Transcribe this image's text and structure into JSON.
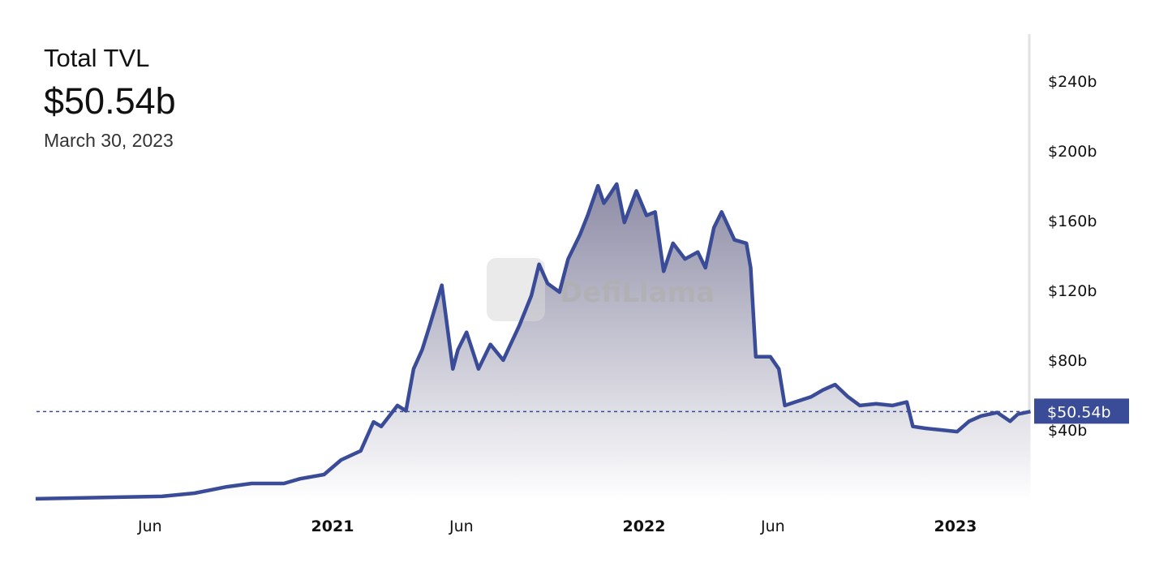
{
  "header": {
    "title": "Total TVL",
    "value": "$50.54b",
    "date": "March 30, 2023"
  },
  "watermark": "DefiLlama",
  "chart_data": {
    "type": "area",
    "title": "Total TVL",
    "xlabel": "",
    "ylabel": "",
    "ylim": [
      0,
      260
    ],
    "y_unit": "billion USD",
    "y_ticks": [
      {
        "v": 40,
        "label": "$40b"
      },
      {
        "v": 80,
        "label": "$80b"
      },
      {
        "v": 120,
        "label": "$120b"
      },
      {
        "v": 160,
        "label": "$160b"
      },
      {
        "v": 200,
        "label": "$200b"
      },
      {
        "v": 240,
        "label": "$240b"
      }
    ],
    "x_ticks": [
      {
        "date": "2020-06-01",
        "label": "Jun",
        "bold": false
      },
      {
        "date": "2021-01-01",
        "label": "2021",
        "bold": true
      },
      {
        "date": "2021-06-01",
        "label": "Jun",
        "bold": false
      },
      {
        "date": "2022-01-01",
        "label": "2022",
        "bold": true
      },
      {
        "date": "2022-06-01",
        "label": "Jun",
        "bold": false
      },
      {
        "date": "2023-01-01",
        "label": "2023",
        "bold": true
      }
    ],
    "grid": false,
    "legend": "none",
    "colors": {
      "line": "#3a4b97",
      "fill_top": "#8d8ca6",
      "fill_bottom": "#ffffff",
      "tag": "#3a4b97"
    },
    "current": {
      "value": 50.54,
      "label": "$50.54b"
    },
    "x": [
      "2020-01-19",
      "2020-06-15",
      "2020-07-23",
      "2020-08-30",
      "2020-09-28",
      "2020-11-05",
      "2020-11-24",
      "2020-12-22",
      "2021-01-11",
      "2021-02-03",
      "2021-02-18",
      "2021-02-27",
      "2021-03-18",
      "2021-03-28",
      "2021-04-06",
      "2021-04-16",
      "2021-04-25",
      "2021-05-09",
      "2021-05-22",
      "2021-05-28",
      "2021-06-07",
      "2021-06-21",
      "2021-07-05",
      "2021-07-20",
      "2021-08-08",
      "2021-08-22",
      "2021-08-31",
      "2021-09-10",
      "2021-09-24",
      "2021-10-04",
      "2021-10-18",
      "2021-10-27",
      "2021-11-08",
      "2021-11-15",
      "2021-11-22",
      "2021-11-30",
      "2021-12-09",
      "2021-12-23",
      "2022-01-04",
      "2022-01-14",
      "2022-01-24",
      "2022-02-04",
      "2022-02-18",
      "2022-03-05",
      "2022-03-14",
      "2022-03-24",
      "2022-04-02",
      "2022-04-17",
      "2022-05-01",
      "2022-05-06",
      "2022-05-12",
      "2022-05-29",
      "2022-06-08",
      "2022-06-15",
      "2022-06-27",
      "2022-07-16",
      "2022-07-30",
      "2022-08-13",
      "2022-08-28",
      "2022-09-11",
      "2022-09-30",
      "2022-10-19",
      "2022-11-05",
      "2022-11-12",
      "2022-11-26",
      "2022-12-15",
      "2023-01-03",
      "2023-01-17",
      "2023-01-31",
      "2023-02-19",
      "2023-03-06",
      "2023-03-15",
      "2023-03-30"
    ],
    "y": [
      0.5,
      1.9,
      3.7,
      7.4,
      9.3,
      9.3,
      12,
      14.4,
      22.8,
      28,
      44.6,
      42,
      54,
      51,
      75,
      86,
      100,
      123,
      75,
      86,
      96,
      75,
      89,
      80,
      100,
      117,
      135,
      124,
      119,
      138,
      152,
      163,
      180,
      170,
      175,
      181,
      159,
      177,
      163,
      165,
      131,
      147,
      138,
      142,
      133,
      156,
      165,
      149,
      147,
      133,
      82,
      82,
      75,
      54,
      56,
      59,
      63,
      66,
      59,
      54,
      55,
      54,
      56,
      42,
      41,
      40,
      39,
      45,
      48,
      50,
      45,
      49,
      50.54
    ]
  }
}
